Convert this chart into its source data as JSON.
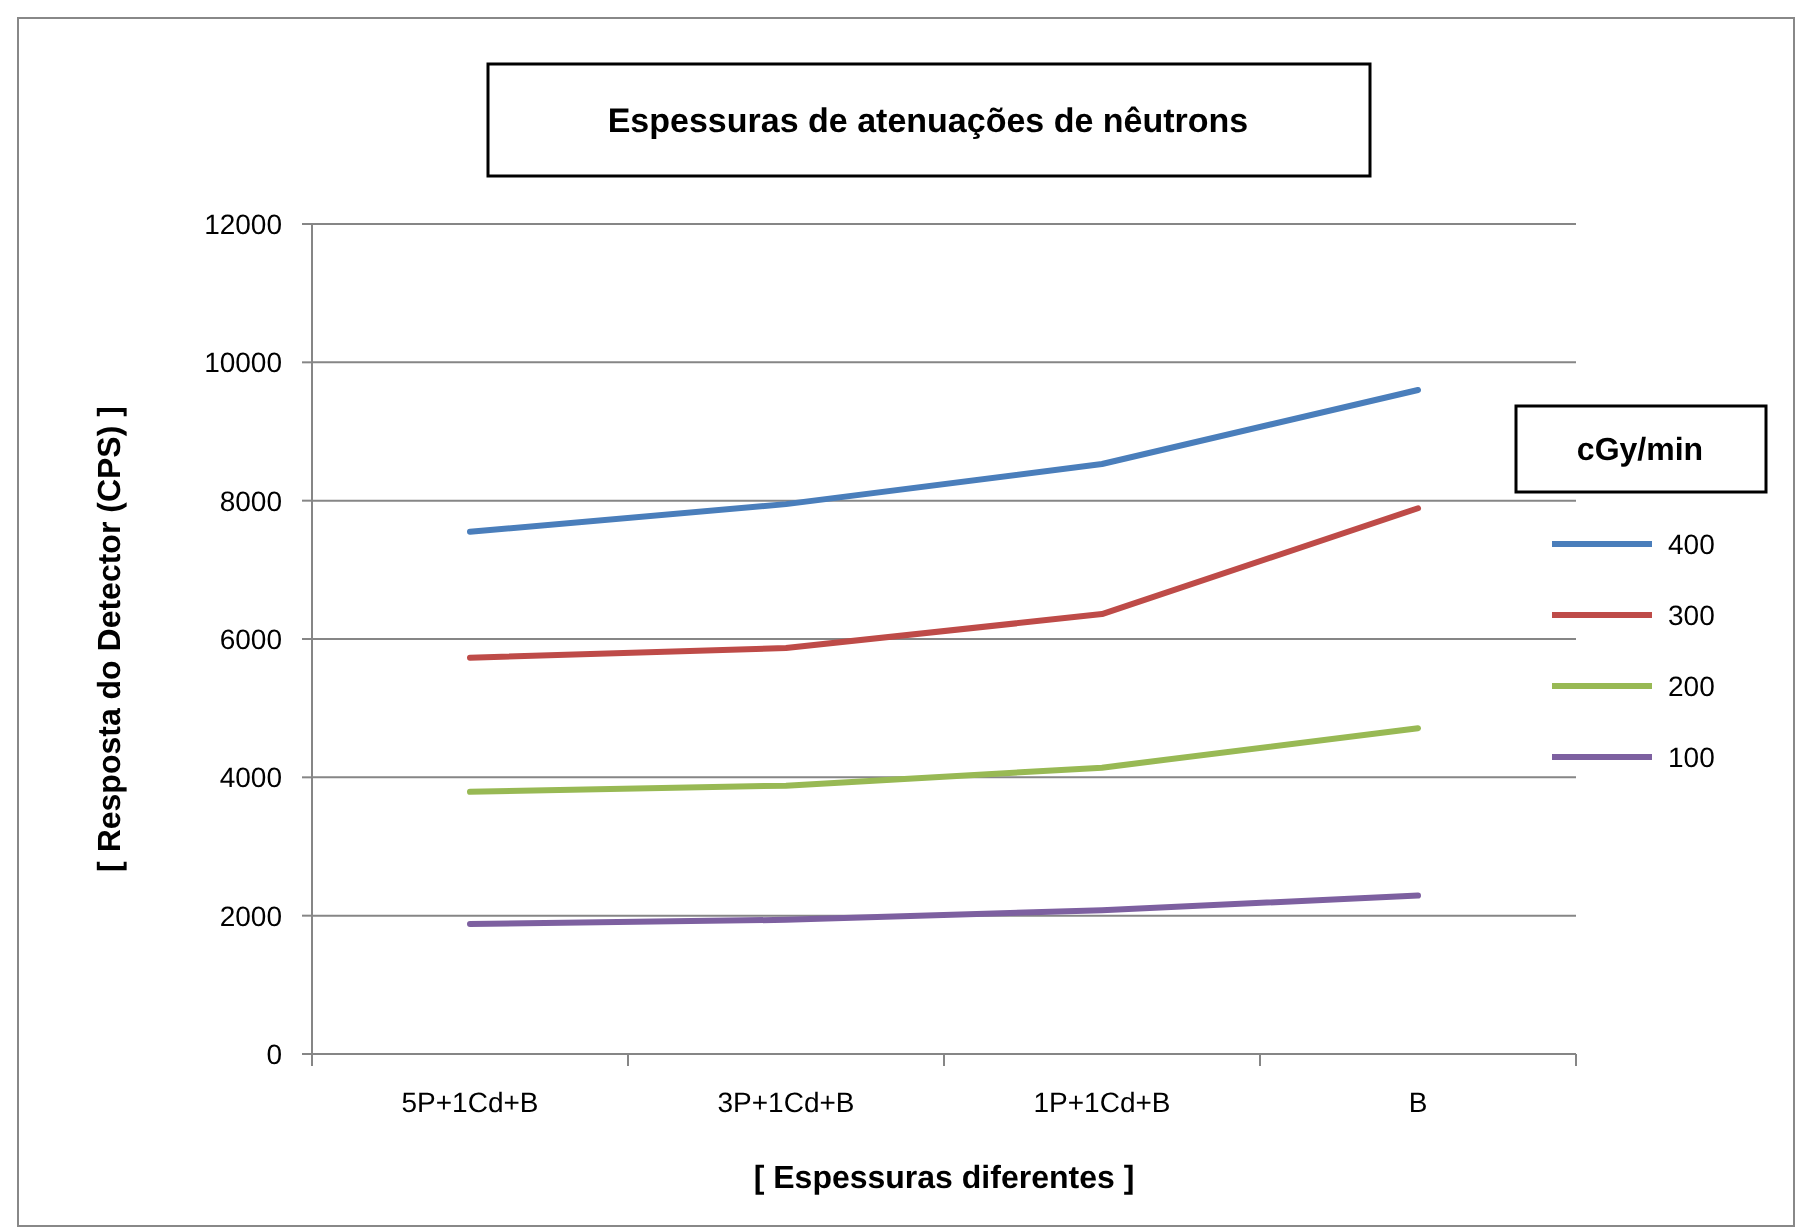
{
  "chart_data": {
    "type": "line",
    "title": "Espessuras de atenuações de nêutrons",
    "xlabel": "[ Espessuras diferentes ]",
    "ylabel": "[ Resposta do Detector (CPS) ]",
    "legend_title": "cGy/min",
    "categories": [
      "5P+1Cd+B",
      "3P+1Cd+B",
      "1P+1Cd+B",
      "B"
    ],
    "series": [
      {
        "name": "400",
        "color": "#4a7ebb",
        "values": [
          7550,
          7950,
          8530,
          9600
        ]
      },
      {
        "name": "300",
        "color": "#be4b48",
        "values": [
          5730,
          5870,
          6360,
          7890
        ]
      },
      {
        "name": "200",
        "color": "#98b954",
        "values": [
          3790,
          3880,
          4140,
          4710
        ]
      },
      {
        "name": "100",
        "color": "#7d60a0",
        "values": [
          1880,
          1940,
          2080,
          2290
        ]
      }
    ],
    "ylim": [
      0,
      12000
    ],
    "yticks": [
      0,
      2000,
      4000,
      6000,
      8000,
      10000,
      12000
    ],
    "grid": "y",
    "legend": "right",
    "marker": "none",
    "line_style": "solid"
  }
}
